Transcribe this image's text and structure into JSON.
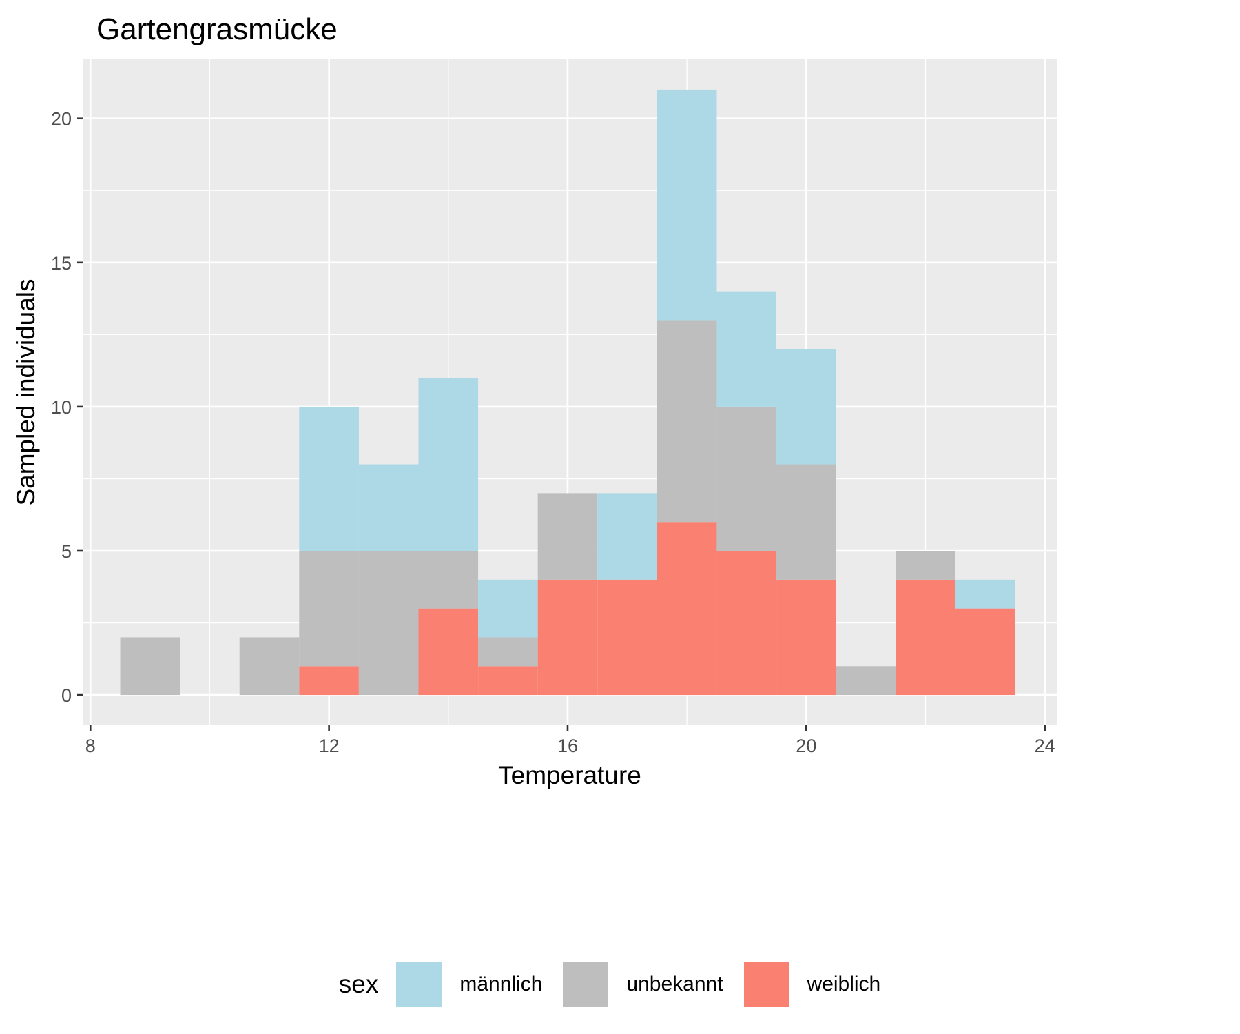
{
  "chart_data": {
    "type": "bar",
    "title": "Gartengrasmücke",
    "xlabel": "Temperature",
    "ylabel": "Sampled individuals",
    "xlim": [
      7.87,
      24.2
    ],
    "ylim": [
      -1.05,
      22.05
    ],
    "x_ticks": [
      8,
      12,
      16,
      20,
      24
    ],
    "y_ticks": [
      0,
      5,
      10,
      15,
      20
    ],
    "grid": true,
    "legend_title": "sex",
    "legend_position": "bottom",
    "bin_width": 1,
    "bin_centers": [
      9,
      10,
      11,
      12,
      13,
      14,
      15,
      16,
      17,
      18,
      19,
      20,
      21,
      22,
      23
    ],
    "stack_order": [
      "weiblich",
      "unbekannt",
      "männlich"
    ],
    "series": [
      {
        "name": "männlich",
        "color": "#add8e6",
        "values": [
          0,
          0,
          0,
          5,
          3,
          6,
          2,
          0,
          3,
          8,
          4,
          4,
          0,
          0,
          1
        ]
      },
      {
        "name": "unbekannt",
        "color": "#bebebe",
        "values": [
          2,
          0,
          2,
          4,
          5,
          2,
          1,
          3,
          0,
          7,
          5,
          4,
          1,
          1,
          0
        ]
      },
      {
        "name": "weiblich",
        "color": "#fa8072",
        "values": [
          0,
          0,
          0,
          1,
          0,
          3,
          1,
          4,
          4,
          6,
          5,
          4,
          0,
          4,
          3
        ]
      }
    ]
  }
}
